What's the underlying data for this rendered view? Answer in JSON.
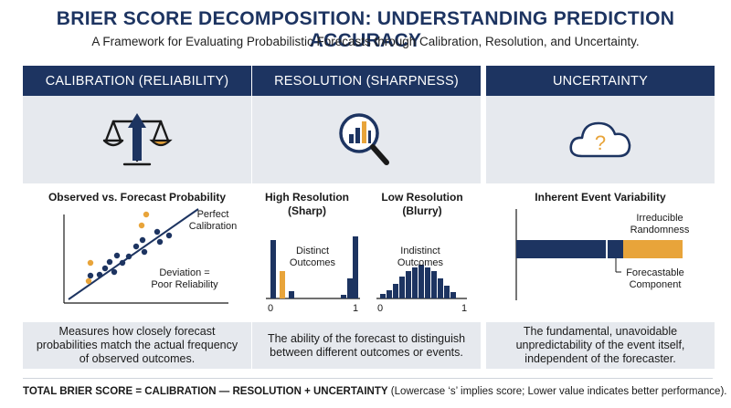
{
  "header": {
    "title": "BRIER SCORE DECOMPOSITION: UNDERSTANDING PREDICTION ACCURACY",
    "subtitle": "A Framework for Evaluating Probabilistic Forecasts through Calibration, Resolution, and Uncertainty."
  },
  "colors": {
    "navy": "#1d3461",
    "orange": "#e8a43a",
    "panel_bg": "#f0f2f5"
  },
  "panels": {
    "calibration": {
      "heading": "CALIBRATION (RELIABILITY)",
      "icon": "balance-scale-icon",
      "chart_title": "Observed vs. Forecast Probability",
      "line_label": "Perfect\nCalibration",
      "deviation_label": "Deviation =\nPoor Reliability",
      "description": "Measures how closely forecast probabilities match the actual frequency of observed outcomes."
    },
    "resolution": {
      "heading": "RESOLUTION (SHARPNESS)",
      "icon": "magnifier-chart-icon",
      "high_title": "High Resolution\n(Sharp)",
      "low_title": "Low Resolution\n(Blurry)",
      "high_label": "Distinct\nOutcomes",
      "low_label": "Indistinct\nOutcomes",
      "axis_min": "0",
      "axis_max": "1",
      "description": "The ability of the forecast to distinguish between different outcomes or events."
    },
    "uncertainty": {
      "heading": "UNCERTAINTY",
      "icon": "cloud-question-icon",
      "chart_title": "Inherent Event Variability",
      "irreducible_label": "Irreducible\nRandomness",
      "forecastable_label": "Forecastable\nComponent",
      "description": "The fundamental, unavoidable unpredictability of the event itself, independent of the forecaster."
    }
  },
  "footer": {
    "formula": "TOTAL BRIER SCORE = CALIBRATION — RESOLUTION + UNCERTAINTY",
    "note": " (Lowercase ‘s’ implies score; Lower value indicates better performance)."
  }
}
